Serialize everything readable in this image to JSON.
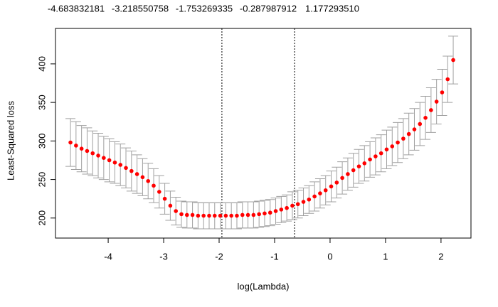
{
  "chart_data": {
    "type": "errorbar-scatter",
    "top_labels": [
      "-4.683832181",
      "-3.218550758",
      "-1.753269335",
      "-0.287987912",
      "1.177293510"
    ],
    "x_label": "log(Lambda)",
    "y_label": "Least-Squared loss",
    "xlim": [
      -4.95,
      2.54
    ],
    "ylim": [
      174,
      446
    ],
    "xticks": [
      -4,
      -3,
      -2,
      -1,
      0,
      1,
      2
    ],
    "yticks": [
      200,
      250,
      300,
      350,
      400
    ],
    "point_color": "#ff0000",
    "error_color": "#a0a0a0",
    "vlines": [
      -1.95,
      -0.64
    ],
    "x": [
      -4.68,
      -4.58,
      -4.48,
      -4.38,
      -4.28,
      -4.18,
      -4.08,
      -3.98,
      -3.88,
      -3.78,
      -3.68,
      -3.58,
      -3.48,
      -3.38,
      -3.28,
      -3.18,
      -3.08,
      -2.98,
      -2.88,
      -2.78,
      -2.68,
      -2.58,
      -2.48,
      -2.38,
      -2.28,
      -2.18,
      -2.08,
      -1.98,
      -1.88,
      -1.78,
      -1.68,
      -1.58,
      -1.48,
      -1.38,
      -1.28,
      -1.18,
      -1.08,
      -0.98,
      -0.88,
      -0.78,
      -0.68,
      -0.58,
      -0.48,
      -0.38,
      -0.28,
      -0.18,
      -0.08,
      0.02,
      0.12,
      0.22,
      0.32,
      0.42,
      0.52,
      0.62,
      0.72,
      0.82,
      0.92,
      1.02,
      1.12,
      1.22,
      1.32,
      1.42,
      1.52,
      1.62,
      1.72,
      1.82,
      1.92,
      2.02,
      2.12,
      2.22
    ],
    "values": [
      298,
      294,
      290,
      287,
      284,
      281,
      278,
      275,
      272,
      269,
      265,
      261,
      257,
      253,
      248,
      242,
      234,
      225,
      216,
      209,
      205,
      204,
      204,
      203,
      203,
      203,
      203,
      203,
      203,
      203,
      203,
      204,
      204,
      204,
      205,
      206,
      207,
      209,
      211,
      213,
      216,
      218,
      221,
      224,
      228,
      232,
      236,
      241,
      246,
      252,
      257,
      262,
      267,
      271,
      276,
      280,
      284,
      289,
      293,
      298,
      303,
      309,
      315,
      322,
      330,
      340,
      351,
      363,
      380,
      405
    ],
    "errors": [
      31,
      31,
      30,
      30,
      29,
      29,
      28,
      28,
      27,
      27,
      26,
      26,
      25,
      24,
      23,
      22,
      21,
      20,
      19,
      18,
      17,
      17,
      17,
      17,
      17,
      17,
      17,
      17,
      17,
      17,
      17,
      17,
      17,
      17,
      17,
      17,
      17,
      17,
      17,
      17,
      18,
      18,
      18,
      18,
      19,
      19,
      19,
      20,
      20,
      21,
      21,
      22,
      22,
      23,
      23,
      24,
      24,
      25,
      25,
      26,
      26,
      27,
      27,
      28,
      28,
      29,
      29,
      30,
      30,
      31
    ]
  }
}
